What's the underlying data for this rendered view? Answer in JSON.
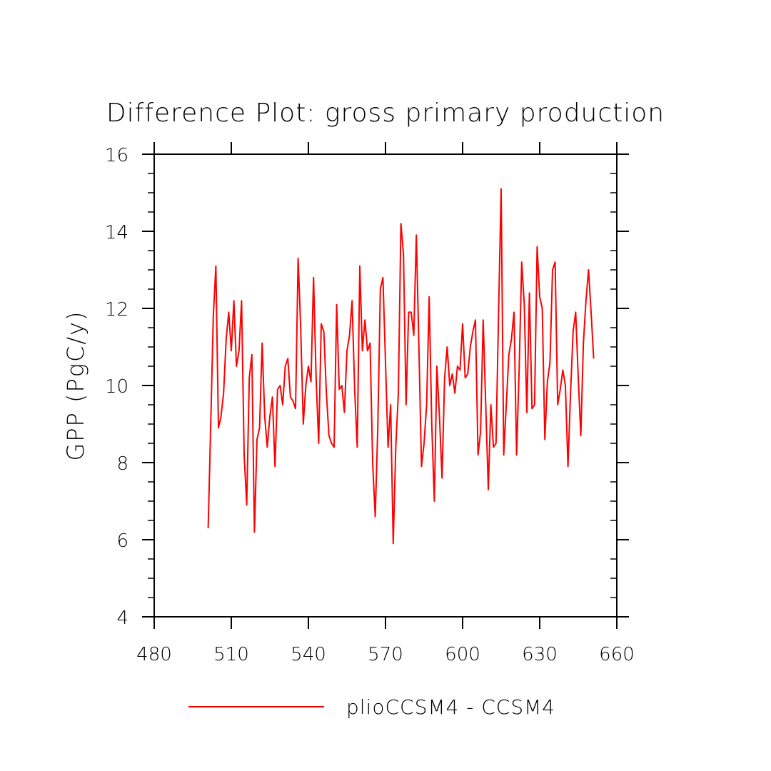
{
  "chart_data": {
    "type": "line",
    "title": "Difference Plot: gross primary production",
    "xlabel": "",
    "ylabel": "GPP  (PgC/y)",
    "xlim": [
      480,
      660
    ],
    "ylim": [
      4,
      16
    ],
    "xticks": [
      480,
      510,
      540,
      570,
      600,
      630,
      660
    ],
    "yticks": [
      4,
      6,
      8,
      10,
      12,
      14,
      16
    ],
    "legend_placement": "bottom-center",
    "grid": false,
    "series": [
      {
        "name": "plioCCSM4 - CCSM4",
        "color": "#ff0000",
        "x0": 501,
        "step": 1,
        "values": [
          6.3,
          9.0,
          11.8,
          13.1,
          8.9,
          9.2,
          9.8,
          11.2,
          11.9,
          10.9,
          12.2,
          10.5,
          10.9,
          12.2,
          8.2,
          6.9,
          10.2,
          10.8,
          6.2,
          8.6,
          8.9,
          11.1,
          9.2,
          8.4,
          9.2,
          9.7,
          7.9,
          9.9,
          10.0,
          9.5,
          10.5,
          10.7,
          9.7,
          9.6,
          9.4,
          13.3,
          11.5,
          9.0,
          10.0,
          10.5,
          10.1,
          12.8,
          10.2,
          8.5,
          11.6,
          11.4,
          9.8,
          8.7,
          8.5,
          8.4,
          12.1,
          9.9,
          10.0,
          9.3,
          10.9,
          11.3,
          12.2,
          9.9,
          8.4,
          13.1,
          10.9,
          11.7,
          10.9,
          11.1,
          8.0,
          6.6,
          8.9,
          12.5,
          12.8,
          10.6,
          8.4,
          9.5,
          5.9,
          8.4,
          9.8,
          14.2,
          13.4,
          9.5,
          11.9,
          11.9,
          11.3,
          13.9,
          11.0,
          7.9,
          8.5,
          9.5,
          12.3,
          9.0,
          7.0,
          10.5,
          9.2,
          7.6,
          10.2,
          11.0,
          10.0,
          10.3,
          9.8,
          10.5,
          10.4,
          11.6,
          10.2,
          10.3,
          11.0,
          11.4,
          11.7,
          8.2,
          8.8,
          11.7,
          9.5,
          7.3,
          9.5,
          8.4,
          8.5,
          11.9,
          15.1,
          8.2,
          9.5,
          10.8,
          11.2,
          11.9,
          8.2,
          10.4,
          13.2,
          12.1,
          9.3,
          12.4,
          9.4,
          9.5,
          13.6,
          12.3,
          12.0,
          8.6,
          10.1,
          10.6,
          13.0,
          13.2,
          9.5,
          9.9,
          10.4,
          10.0,
          7.9,
          9.8,
          11.4,
          11.9,
          10.2,
          8.7,
          11.1,
          12.2,
          13.0,
          11.9,
          10.7
        ]
      }
    ]
  }
}
